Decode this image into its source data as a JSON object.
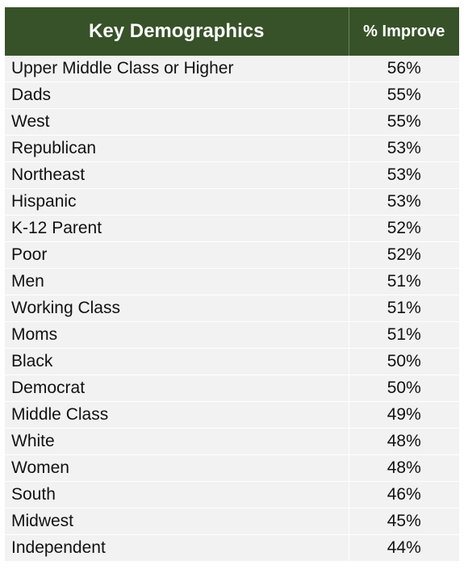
{
  "chart_data": {
    "type": "table",
    "columns": [
      "Key Demographics",
      "% Improve"
    ],
    "header_color": "#375229",
    "row_color": "#f2f2f2",
    "rows": [
      {
        "label": "Upper Middle Class or Higher",
        "value": "56%"
      },
      {
        "label": "Dads",
        "value": "55%"
      },
      {
        "label": "West",
        "value": "55%"
      },
      {
        "label": "Republican",
        "value": "53%"
      },
      {
        "label": "Northeast",
        "value": "53%"
      },
      {
        "label": "Hispanic",
        "value": "53%"
      },
      {
        "label": "K-12 Parent",
        "value": "52%"
      },
      {
        "label": "Poor",
        "value": "52%"
      },
      {
        "label": "Men",
        "value": "51%"
      },
      {
        "label": "Working Class",
        "value": "51%"
      },
      {
        "label": "Moms",
        "value": "51%"
      },
      {
        "label": "Black",
        "value": "50%"
      },
      {
        "label": "Democrat",
        "value": "50%"
      },
      {
        "label": "Middle Class",
        "value": "49%"
      },
      {
        "label": "White",
        "value": "48%"
      },
      {
        "label": "Women",
        "value": "48%"
      },
      {
        "label": "South",
        "value": "46%"
      },
      {
        "label": "Midwest",
        "value": "45%"
      },
      {
        "label": "Independent",
        "value": "44%"
      }
    ]
  }
}
